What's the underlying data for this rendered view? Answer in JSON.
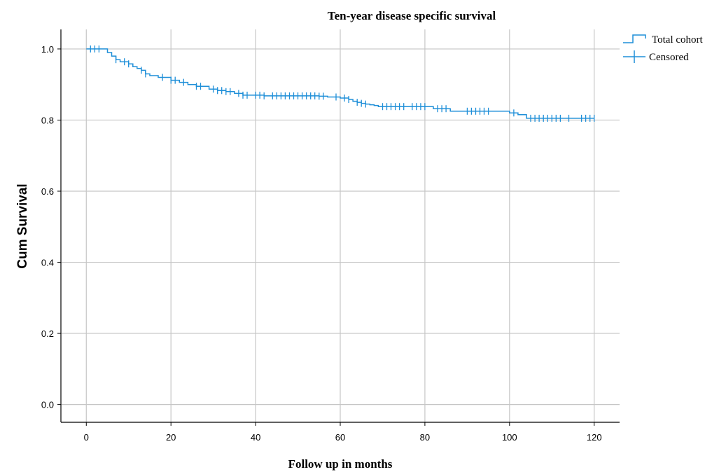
{
  "chart_data": {
    "type": "line",
    "title": "Ten-year disease specific survival",
    "xlabel": "Follow up in months",
    "ylabel": "Cum Survival",
    "xlim": [
      -6,
      126
    ],
    "ylim": [
      -0.05,
      1.055
    ],
    "x_ticks": [
      0,
      20,
      40,
      60,
      80,
      100,
      120
    ],
    "y_ticks": [
      0.0,
      0.2,
      0.4,
      0.6,
      0.8,
      1.0
    ],
    "x_tick_labels": [
      "0",
      "20",
      "40",
      "60",
      "80",
      "100",
      "120"
    ],
    "y_tick_labels": [
      "0.0",
      "0.2",
      "0.4",
      "0.6",
      "0.8",
      "1.0"
    ],
    "grid": true,
    "legend_position": "top-right",
    "colors": {
      "series": "#1f8fd8",
      "grid": "#c6c6c6",
      "axis": "#000000"
    },
    "legend": [
      {
        "label": "Total cohort",
        "marker": "step"
      },
      {
        "label": "Censored",
        "marker": "plus"
      }
    ],
    "series": [
      {
        "name": "Total cohort",
        "step_x": [
          0,
          5,
          6,
          7,
          8,
          10,
          11,
          12,
          13,
          14,
          15,
          17,
          20,
          22,
          24,
          26,
          29,
          31,
          33,
          35,
          37,
          42,
          55,
          57,
          60,
          62,
          63,
          64,
          65,
          66,
          67,
          68,
          69,
          82,
          86,
          100,
          102,
          104,
          120
        ],
        "step_y": [
          1.0,
          0.99,
          0.98,
          0.97,
          0.964,
          0.958,
          0.95,
          0.945,
          0.94,
          0.93,
          0.925,
          0.92,
          0.912,
          0.906,
          0.9,
          0.895,
          0.887,
          0.883,
          0.88,
          0.875,
          0.87,
          0.868,
          0.867,
          0.865,
          0.862,
          0.858,
          0.853,
          0.85,
          0.847,
          0.845,
          0.843,
          0.841,
          0.838,
          0.832,
          0.825,
          0.82,
          0.815,
          0.805,
          0.805
        ],
        "censored_x": [
          1,
          2,
          3,
          7,
          9,
          10,
          13,
          14,
          18,
          20,
          21,
          23,
          26,
          27,
          30,
          31,
          32,
          33,
          34,
          36,
          37,
          38,
          40,
          41,
          42,
          44,
          45,
          46,
          47,
          48,
          49,
          50,
          51,
          52,
          53,
          54,
          55,
          56,
          59,
          61,
          62,
          64,
          65,
          66,
          70,
          71,
          72,
          73,
          74,
          75,
          77,
          78,
          79,
          80,
          83,
          84,
          85,
          90,
          91,
          92,
          93,
          94,
          95,
          101,
          105,
          106,
          107,
          108,
          109,
          110,
          111,
          112,
          114,
          117,
          118,
          119,
          120
        ]
      }
    ]
  }
}
